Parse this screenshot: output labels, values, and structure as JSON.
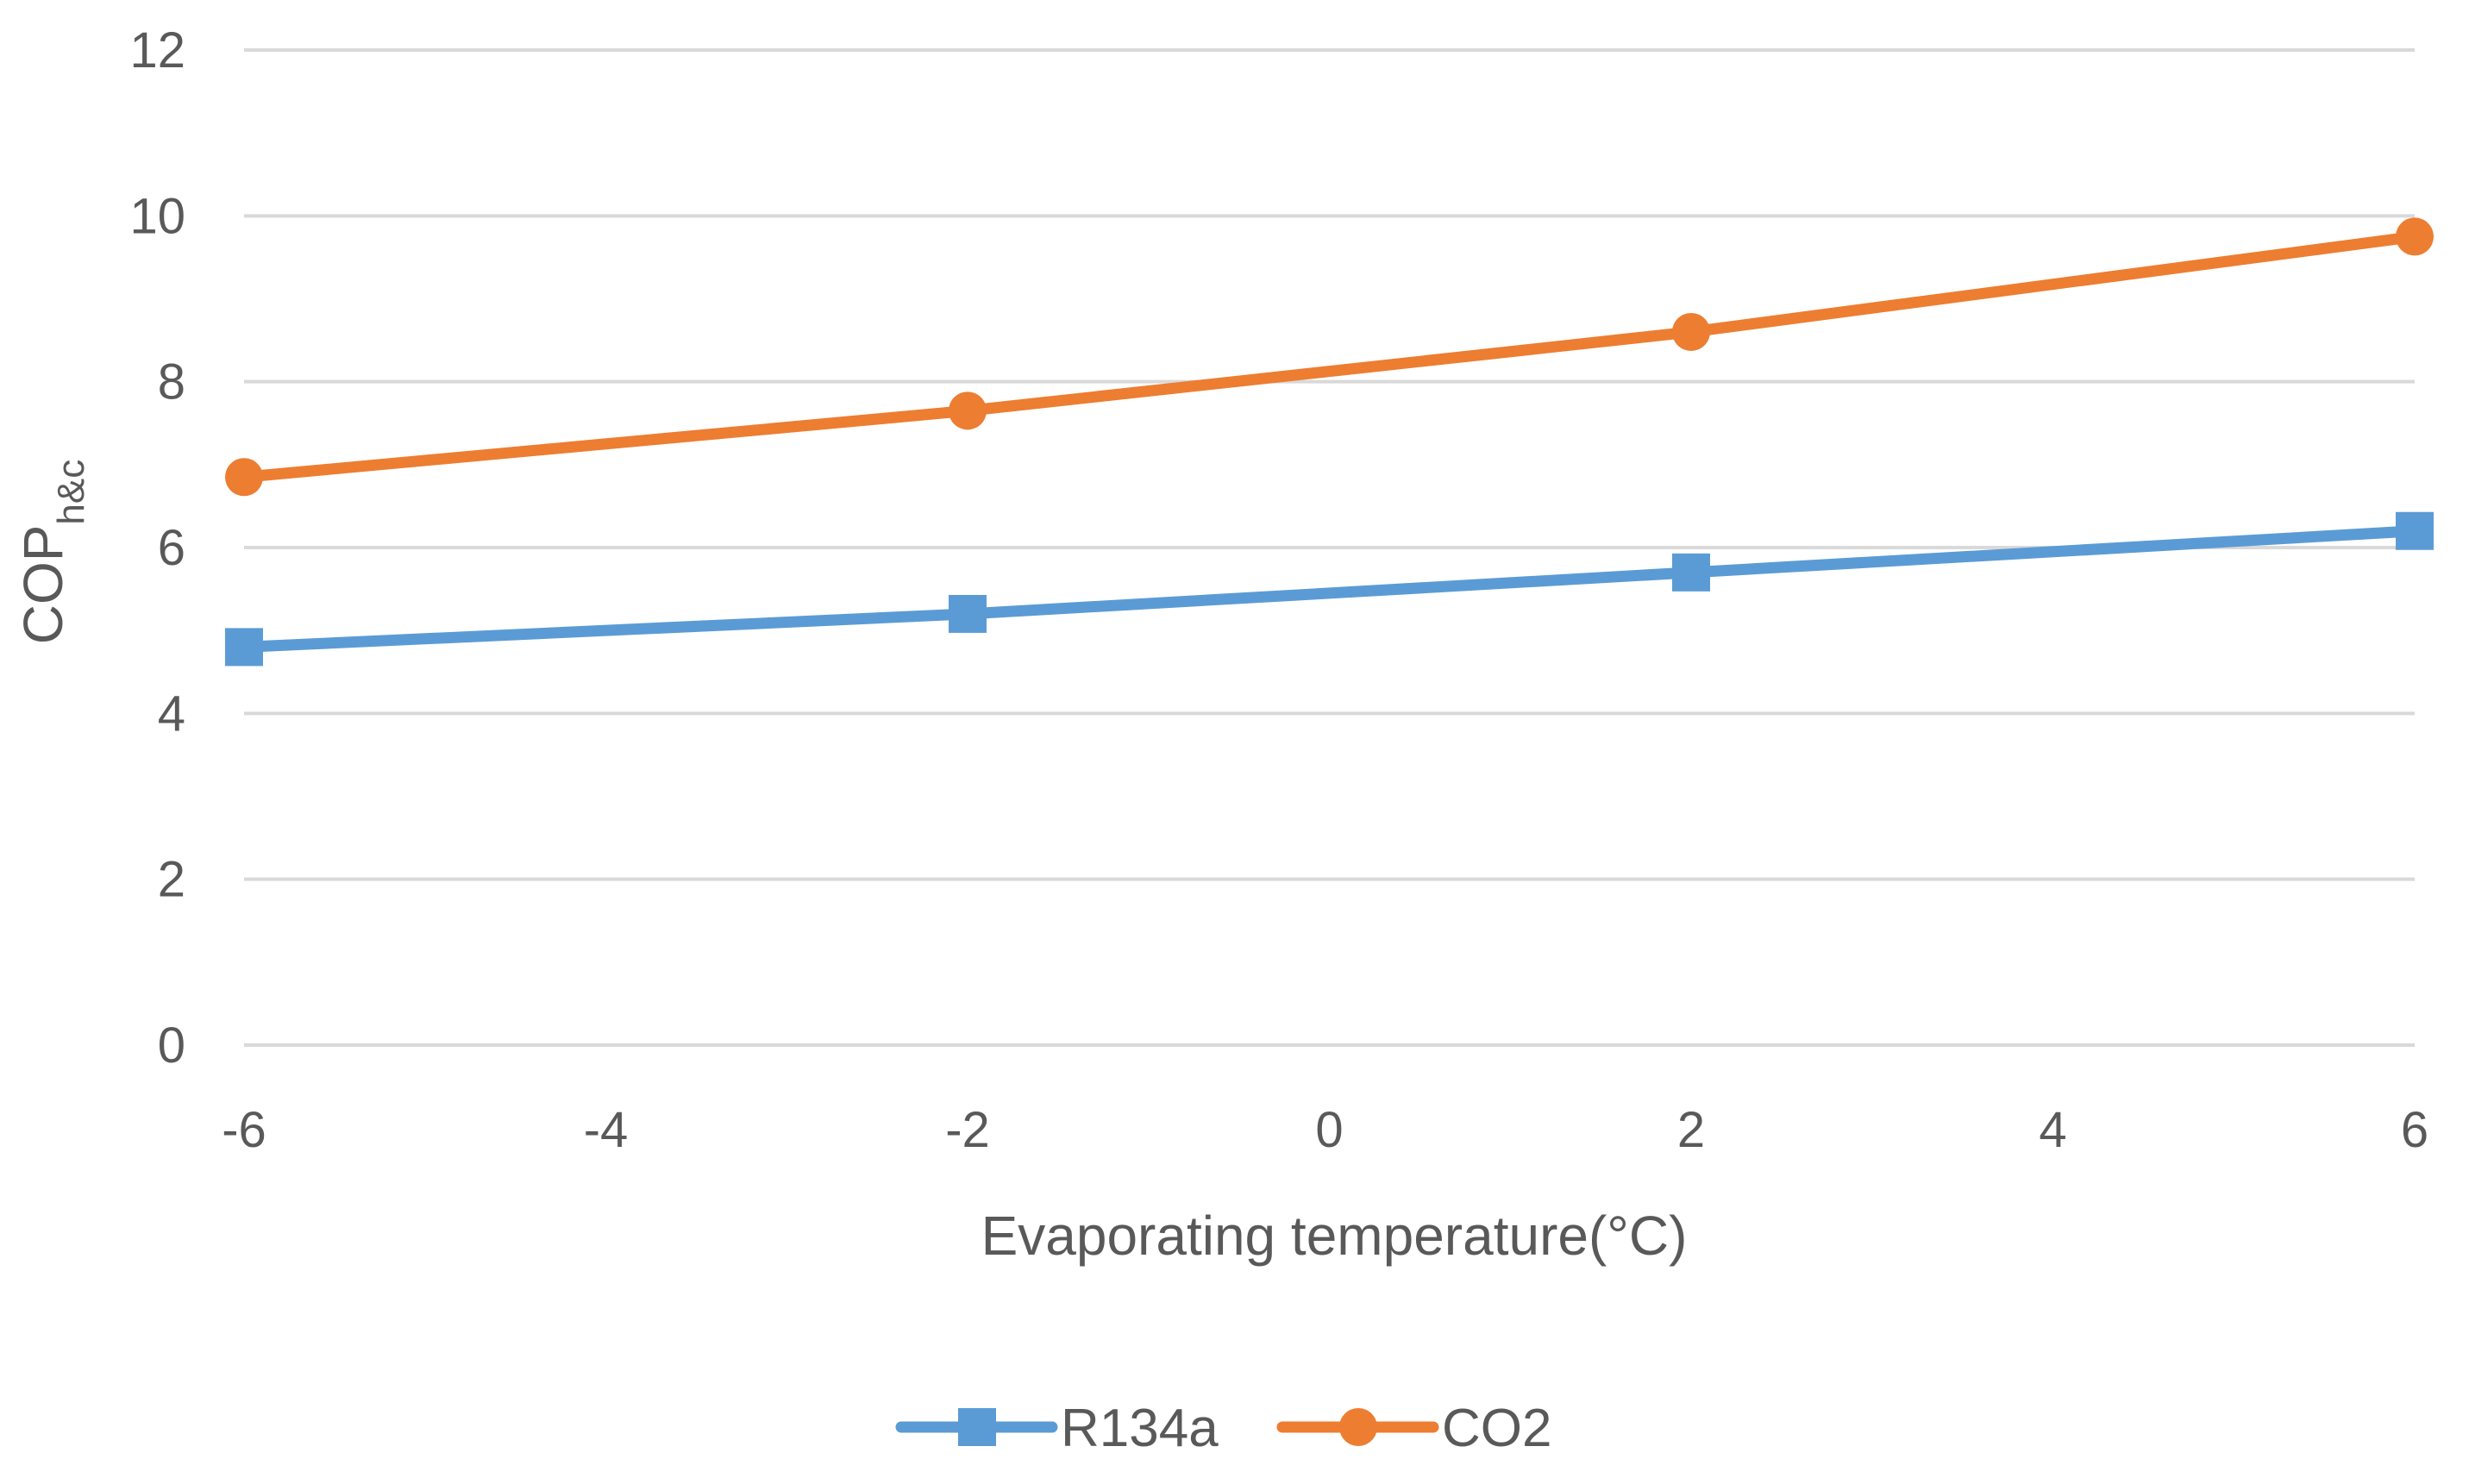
{
  "chart_data": {
    "type": "line",
    "title": "",
    "xlabel": "Evaporating temperature(°C)",
    "ylabel": "COP",
    "ylabel_subscript": "h&c",
    "x": [
      -6,
      -2,
      2,
      6
    ],
    "xlim": [
      -6,
      6
    ],
    "ylim": [
      0,
      12
    ],
    "xticks": [
      -6,
      -4,
      -2,
      0,
      2,
      4,
      6
    ],
    "yticks": [
      0,
      2,
      4,
      6,
      8,
      10,
      12
    ],
    "grid": "horizontal",
    "legend_position": "bottom-center",
    "series": [
      {
        "name": "R134a",
        "color": "#5B9BD5",
        "marker": "square",
        "values": [
          4.8,
          5.2,
          5.7,
          6.2
        ]
      },
      {
        "name": "CO2",
        "color": "#ED7D31",
        "marker": "circle",
        "values": [
          6.85,
          7.65,
          8.6,
          9.75
        ]
      }
    ]
  }
}
